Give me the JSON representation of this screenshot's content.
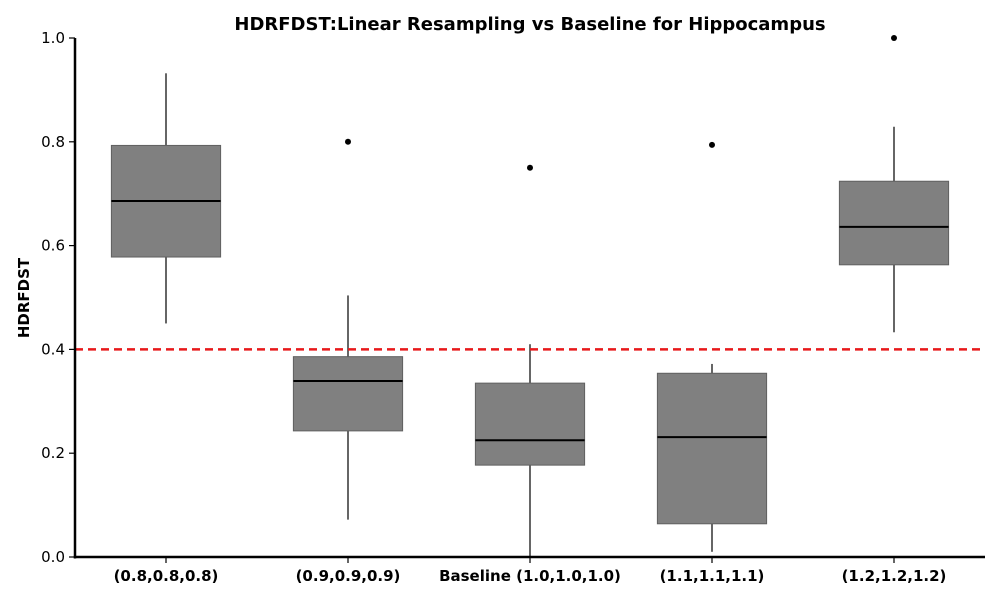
{
  "chart_data": {
    "type": "box",
    "title": "HDRFDST:Linear Resampling vs Baseline for Hippocampus",
    "xlabel": "",
    "ylabel": "HDRFDST",
    "ylim": [
      0.0,
      1.0
    ],
    "yticks": [
      "0.0",
      "0.2",
      "0.4",
      "0.6",
      "0.8",
      "1.0"
    ],
    "grid": false,
    "categories": [
      "(0.8,0.8,0.8)",
      "(0.9,0.9,0.9)",
      "Baseline (1.0,1.0,1.0)",
      "(1.1,1.1,1.1)",
      "(1.2,1.2,1.2)"
    ],
    "boxes": [
      {
        "whisker_low": 0.45,
        "q1": 0.578,
        "median": 0.686,
        "q3": 0.793,
        "whisker_high": 0.932,
        "outliers": []
      },
      {
        "whisker_low": 0.072,
        "q1": 0.243,
        "median": 0.339,
        "q3": 0.386,
        "whisker_high": 0.504,
        "outliers": [
          0.8
        ]
      },
      {
        "whisker_low": 0.0,
        "q1": 0.177,
        "median": 0.225,
        "q3": 0.335,
        "whisker_high": 0.41,
        "outliers": [
          0.75
        ]
      },
      {
        "whisker_low": 0.01,
        "q1": 0.064,
        "median": 0.231,
        "q3": 0.354,
        "whisker_high": 0.372,
        "outliers": [
          0.794
        ]
      },
      {
        "whisker_low": 0.433,
        "q1": 0.563,
        "median": 0.636,
        "q3": 0.724,
        "whisker_high": 0.829,
        "outliers": [
          1.0
        ]
      }
    ],
    "reference_line": {
      "y": 0.4,
      "style": "dashed",
      "color": "#e8191b"
    },
    "box_color": "#808080"
  }
}
